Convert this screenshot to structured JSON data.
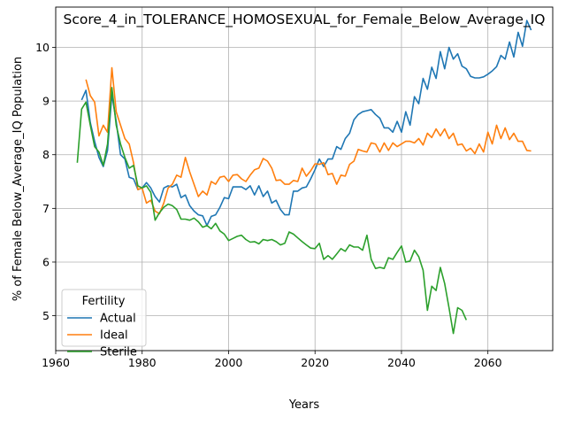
{
  "chart_data": {
    "type": "line",
    "title": "Score_4_in_TOLERANCE_HOMOSEXUAL_for_Female_Below_Average_IQ",
    "xlabel": "Years",
    "ylabel": "% of Female Below_Average_IQ Population",
    "xlim": [
      1960,
      2075
    ],
    "ylim": [
      4.35,
      10.75
    ],
    "xticks": [
      1960,
      1980,
      2000,
      2020,
      2040,
      2060
    ],
    "yticks": [
      5,
      6,
      7,
      8,
      9,
      10
    ],
    "grid": true,
    "legend": {
      "title": "Fertility",
      "placement": "lower-left"
    },
    "series": [
      {
        "name": "Actual",
        "color": "#1f77b4",
        "x": [
          1966,
          1967,
          1968,
          1969,
          1970,
          1971,
          1972,
          1973,
          1974,
          1975,
          1976,
          1977,
          1978,
          1979,
          1980,
          1981,
          1982,
          1983,
          1984,
          1985,
          1986,
          1987,
          1988,
          1989,
          1990,
          1991,
          1992,
          1993,
          1994,
          1995,
          1996,
          1997,
          1998,
          1999,
          2000,
          2001,
          2002,
          2003,
          2004,
          2005,
          2006,
          2007,
          2008,
          2009,
          2010,
          2011,
          2012,
          2013,
          2014,
          2015,
          2016,
          2017,
          2018,
          2019,
          2020,
          2021,
          2022,
          2023,
          2024,
          2025,
          2026,
          2027,
          2028,
          2029,
          2030,
          2031,
          2032,
          2033,
          2034,
          2035,
          2036,
          2037,
          2038,
          2039,
          2040,
          2041,
          2042,
          2043,
          2044,
          2045,
          2046,
          2047,
          2048,
          2049,
          2050,
          2051,
          2052,
          2053,
          2054,
          2055,
          2056,
          2057,
          2058,
          2059,
          2060,
          2061,
          2062,
          2063,
          2064,
          2065,
          2066,
          2067,
          2068,
          2069,
          2070
        ],
        "values": [
          9.02,
          9.2,
          8.6,
          8.25,
          7.95,
          7.78,
          8.08,
          9.12,
          8.62,
          8.0,
          7.92,
          7.58,
          7.55,
          7.35,
          7.38,
          7.48,
          7.38,
          7.22,
          7.12,
          7.38,
          7.42,
          7.4,
          7.45,
          7.2,
          7.25,
          7.05,
          6.95,
          6.88,
          6.86,
          6.68,
          6.85,
          6.88,
          7.02,
          7.2,
          7.18,
          7.4,
          7.4,
          7.4,
          7.35,
          7.42,
          7.25,
          7.42,
          7.22,
          7.32,
          7.1,
          7.15,
          6.98,
          6.88,
          6.88,
          7.32,
          7.32,
          7.38,
          7.4,
          7.55,
          7.72,
          7.92,
          7.78,
          7.92,
          7.92,
          8.15,
          8.1,
          8.3,
          8.4,
          8.65,
          8.75,
          8.8,
          8.82,
          8.84,
          8.75,
          8.68,
          8.5,
          8.5,
          8.42,
          8.62,
          8.42,
          8.8,
          8.55,
          9.08,
          8.95,
          9.42,
          9.22,
          9.63,
          9.42,
          9.92,
          9.6,
          10.0,
          9.78,
          9.88,
          9.65,
          9.6,
          9.46,
          9.43,
          9.43,
          9.45,
          9.5,
          9.56,
          9.64,
          9.85,
          9.78,
          10.1,
          9.82,
          10.28,
          10.02,
          10.5,
          10.32
        ]
      },
      {
        "name": "Ideal",
        "color": "#ff7f0e",
        "x": [
          1967,
          1968,
          1969,
          1970,
          1971,
          1972,
          1973,
          1974,
          1975,
          1976,
          1977,
          1978,
          1979,
          1980,
          1981,
          1982,
          1983,
          1984,
          1985,
          1986,
          1987,
          1988,
          1989,
          1990,
          1991,
          1992,
          1993,
          1994,
          1995,
          1996,
          1997,
          1998,
          1999,
          2000,
          2001,
          2002,
          2003,
          2004,
          2005,
          2006,
          2007,
          2008,
          2009,
          2010,
          2011,
          2012,
          2013,
          2014,
          2015,
          2016,
          2017,
          2018,
          2019,
          2020,
          2021,
          2022,
          2023,
          2024,
          2025,
          2026,
          2027,
          2028,
          2029,
          2030,
          2031,
          2032,
          2033,
          2034,
          2035,
          2036,
          2037,
          2038,
          2039,
          2040,
          2041,
          2042,
          2043,
          2044,
          2045,
          2046,
          2047,
          2048,
          2049,
          2050,
          2051,
          2052,
          2053,
          2054,
          2055,
          2056,
          2057,
          2058,
          2059,
          2060,
          2061,
          2062,
          2063,
          2064,
          2065,
          2066,
          2067,
          2068,
          2069,
          2070
        ],
        "values": [
          9.4,
          9.1,
          8.98,
          8.35,
          8.55,
          8.42,
          9.62,
          8.8,
          8.55,
          8.3,
          8.2,
          7.85,
          7.35,
          7.38,
          7.1,
          7.15,
          6.95,
          6.9,
          7.1,
          7.38,
          7.45,
          7.62,
          7.58,
          7.95,
          7.68,
          7.45,
          7.22,
          7.32,
          7.25,
          7.5,
          7.45,
          7.58,
          7.6,
          7.5,
          7.62,
          7.63,
          7.55,
          7.5,
          7.62,
          7.72,
          7.75,
          7.93,
          7.88,
          7.75,
          7.52,
          7.53,
          7.45,
          7.45,
          7.52,
          7.5,
          7.75,
          7.6,
          7.7,
          7.83,
          7.82,
          7.85,
          7.63,
          7.65,
          7.45,
          7.62,
          7.6,
          7.82,
          7.88,
          8.1,
          8.07,
          8.05,
          8.22,
          8.2,
          8.05,
          8.22,
          8.08,
          8.22,
          8.15,
          8.2,
          8.25,
          8.25,
          8.22,
          8.3,
          8.18,
          8.4,
          8.32,
          8.48,
          8.35,
          8.48,
          8.3,
          8.4,
          8.18,
          8.2,
          8.07,
          8.12,
          8.02,
          8.2,
          8.05,
          8.42,
          8.2,
          8.55,
          8.3,
          8.5,
          8.28,
          8.4,
          8.25,
          8.25,
          8.08,
          8.07
        ]
      },
      {
        "name": "Sterile",
        "color": "#2ca02c",
        "x": [
          1965,
          1966,
          1967,
          1968,
          1969,
          1970,
          1971,
          1972,
          1973,
          1974,
          1975,
          1976,
          1977,
          1978,
          1979,
          1980,
          1981,
          1982,
          1983,
          1984,
          1985,
          1986,
          1987,
          1988,
          1989,
          1990,
          1991,
          1992,
          1993,
          1994,
          1995,
          1996,
          1997,
          1998,
          1999,
          2000,
          2001,
          2002,
          2003,
          2004,
          2005,
          2006,
          2007,
          2008,
          2009,
          2010,
          2011,
          2012,
          2013,
          2014,
          2015,
          2016,
          2017,
          2018,
          2019,
          2020,
          2021,
          2022,
          2023,
          2024,
          2025,
          2026,
          2027,
          2028,
          2029,
          2030,
          2031,
          2032,
          2033,
          2034,
          2035,
          2036,
          2037,
          2038,
          2039,
          2040,
          2041,
          2042,
          2043,
          2044,
          2045,
          2046,
          2047,
          2048,
          2049,
          2050,
          2051,
          2052,
          2053,
          2054,
          2055
        ],
        "values": [
          7.85,
          8.85,
          8.98,
          8.55,
          8.15,
          8.05,
          7.8,
          8.2,
          9.25,
          8.55,
          8.2,
          7.95,
          7.75,
          7.8,
          7.42,
          7.38,
          7.42,
          7.3,
          6.78,
          6.92,
          7.02,
          7.08,
          7.05,
          6.98,
          6.8,
          6.8,
          6.78,
          6.82,
          6.75,
          6.65,
          6.68,
          6.62,
          6.72,
          6.58,
          6.52,
          6.4,
          6.44,
          6.48,
          6.5,
          6.42,
          6.37,
          6.38,
          6.34,
          6.42,
          6.4,
          6.42,
          6.38,
          6.32,
          6.35,
          6.56,
          6.52,
          6.45,
          6.38,
          6.32,
          6.26,
          6.25,
          6.35,
          6.05,
          6.12,
          6.05,
          6.15,
          6.25,
          6.2,
          6.32,
          6.28,
          6.28,
          6.22,
          6.5,
          6.05,
          5.88,
          5.9,
          5.88,
          6.08,
          6.05,
          6.18,
          6.3,
          6.0,
          6.02,
          6.22,
          6.1,
          5.85,
          5.1,
          5.55,
          5.47,
          5.9,
          5.6,
          5.15,
          4.67,
          5.15,
          5.1,
          4.92
        ]
      }
    ]
  }
}
